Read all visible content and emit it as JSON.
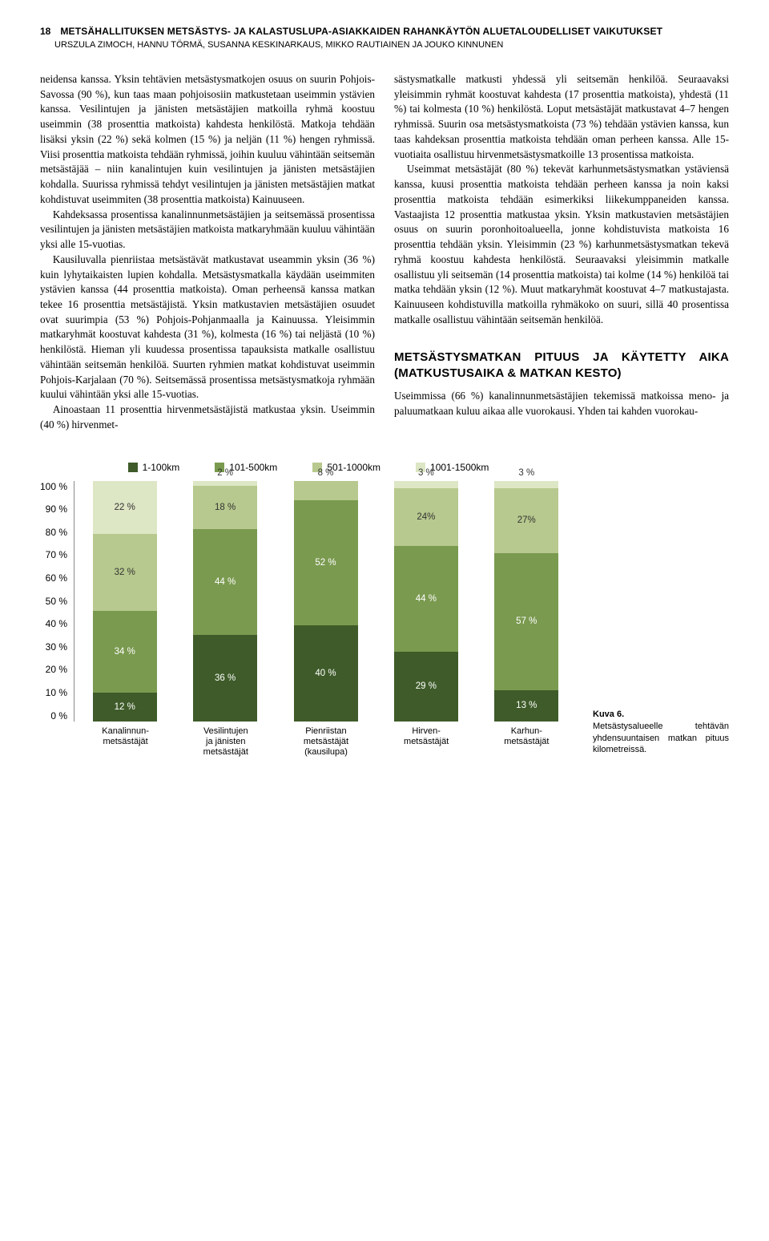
{
  "header": {
    "page_number": "18",
    "title": "METSÄHALLITUKSEN METSÄSTYS- JA KALASTUSLUPA-ASIAKKAIDEN RAHANKÄYTÖN ALUETALOUDELLISET VAIKUTUKSET",
    "authors": "URSZULA ZIMOCH, HANNU TÖRMÄ, SUSANNA KESKINARKAUS, MIKKO RAUTIAINEN JA JOUKO KINNUNEN"
  },
  "left_col": {
    "p1": "neidensa kanssa. Yksin tehtävien metsästysmatkojen osuus on suurin Pohjois-Savossa (90 %), kun taas maan pohjoisosiin matkustetaan useimmin ystävien kanssa. Vesilintujen ja jänisten metsästäjien matkoilla ryhmä koostuu useimmin (38 prosenttia matkoista) kahdesta henkilöstä. Matkoja tehdään lisäksi yksin (22 %) sekä kolmen (15 %) ja neljän (11 %) hengen ryhmissä. Viisi prosenttia matkoista tehdään ryhmissä, joihin kuuluu vähintään seitsemän metsästäjää – niin kanalintujen kuin vesilintujen ja jänisten metsästäjien kohdalla. Suurissa ryhmissä tehdyt vesilintujen ja jänisten metsästäjien matkat kohdistuvat useimmiten (38 prosenttia matkoista) Kainuuseen.",
    "p2": "Kahdeksassa prosentissa kanalinnunmetsästäjien ja seitsemässä prosentissa vesilintujen ja jänisten metsästäjien matkoista matkaryhmään kuuluu vähintään yksi alle 15-vuotias.",
    "p3": "Kausiluvalla pienriistaa metsästävät matkustavat useammin yksin (36 %) kuin lyhytaikaisten lupien kohdalla. Metsästysmatkalla käydään useimmiten ystävien kanssa (44 prosenttia matkoista). Oman perheensä kanssa matkan tekee 16 prosenttia metsästäjistä. Yksin matkustavien metsästäjien osuudet ovat suurimpia (53 %) Pohjois-Pohjanmaalla ja Kainuussa. Yleisimmin matkaryhmät koostuvat kahdesta (31 %), kolmesta (16 %) tai neljästä (10 %) henkilöstä. Hieman yli kuudessa prosentissa tapauksista matkalle osallistuu vähintään seitsemän henkilöä. Suurten ryhmien matkat kohdistuvat useimmin Pohjois-Karjalaan (70 %). Seitsemässä prosentissa metsästysmatkoja ryhmään kuului vähintään yksi alle 15-vuotias.",
    "p4": "Ainoastaan 11 prosenttia hirvenmetsästäjistä matkustaa yksin. Useimmin (40 %) hirvenmet-"
  },
  "right_col": {
    "p1": "sästysmatkalle matkusti yhdessä yli seitsemän henkilöä. Seuraavaksi yleisimmin ryhmät koostuvat kahdesta (17 prosenttia matkoista), yhdestä (11 %) tai kolmesta (10 %) henkilöstä. Loput metsästäjät matkustavat 4–7 hengen ryhmissä. Suurin osa metsästysmatkoista (73 %) tehdään ystävien kanssa, kun taas kahdeksan prosenttia matkoista tehdään oman perheen kanssa. Alle 15-vuotiaita osallistuu hirvenmetsästysmatkoille 13 prosentissa matkoista.",
    "p2": "Useimmat metsästäjät (80 %) tekevät karhunmetsästysmatkan ystäviensä kanssa, kuusi prosenttia matkoista tehdään perheen kanssa ja noin kaksi prosenttia matkoista tehdään esimerkiksi liikekumppaneiden kanssa. Vastaajista 12 prosenttia matkustaa yksin. Yksin matkustavien metsästäjien osuus on suurin poronhoitoalueella, jonne kohdistuvista matkoista 16 prosenttia tehdään yksin. Yleisimmin (23 %) karhunmetsästysmatkan tekevä ryhmä koostuu kahdesta henkilöstä. Seuraavaksi yleisimmin matkalle osallistuu yli seitsemän (14 prosenttia matkoista) tai kolme (14 %) henkilöä tai matka tehdään yksin (12 %). Muut matkaryhmät koostuvat 4–7 matkustajasta. Kainuuseen kohdistuvilla matkoilla ryhmäkoko on suuri, sillä 40 prosentissa matkalle osallistuu vähintään seitsemän henkilöä.",
    "heading": "METSÄSTYSMATKAN PITUUS JA KÄYTETTY AIKA (MATKUSTUSAIKA & MATKAN KESTO)",
    "p3": "Useimmissa (66 %) kanalinnunmetsästäjien tekemissä matkoissa meno- ja paluumatkaan kuluu aikaa alle vuorokausi. Yhden tai kahden vuorokau-"
  },
  "chart": {
    "type": "stacked-bar",
    "legend": [
      {
        "label": "1-100km",
        "color": "#3e5b29"
      },
      {
        "label": "101-500km",
        "color": "#7a9a4f"
      },
      {
        "label": "501-1000km",
        "color": "#b7c98e"
      },
      {
        "label": "1001-1500km",
        "color": "#dde6c5"
      }
    ],
    "y_ticks": [
      "100 %",
      "90 %",
      "80 %",
      "70 %",
      "60 %",
      "50 %",
      "40 %",
      "30 %",
      "20 %",
      "10 %",
      "0 %"
    ],
    "bars": [
      {
        "x_label": "Kanalinnun-\nmetsästäjät",
        "segments": [
          {
            "value": 12,
            "label": "12 %",
            "color": "#3e5b29",
            "text_dark": false
          },
          {
            "value": 34,
            "label": "34 %",
            "color": "#7a9a4f",
            "text_dark": false
          },
          {
            "value": 32,
            "label": "32 %",
            "color": "#b7c98e",
            "text_dark": true
          },
          {
            "value": 22,
            "label": "22 %",
            "color": "#dde6c5",
            "text_dark": true
          }
        ]
      },
      {
        "x_label": "Vesilintujen\nja jänisten\nmetsästäjät",
        "segments": [
          {
            "value": 36,
            "label": "36 %",
            "color": "#3e5b29",
            "text_dark": false
          },
          {
            "value": 44,
            "label": "44 %",
            "color": "#7a9a4f",
            "text_dark": false
          },
          {
            "value": 18,
            "label": "18 %",
            "color": "#b7c98e",
            "text_dark": true
          },
          {
            "value": 2,
            "label": "2 %",
            "color": "#dde6c5",
            "text_dark": true,
            "label_above": true
          }
        ]
      },
      {
        "x_label": "Pienriistan\nmetsästäjät\n(kausilupa)",
        "segments": [
          {
            "value": 40,
            "label": "40 %",
            "color": "#3e5b29",
            "text_dark": false
          },
          {
            "value": 52,
            "label": "52 %",
            "color": "#7a9a4f",
            "text_dark": false
          },
          {
            "value": 8,
            "label": "8 %",
            "color": "#b7c98e",
            "text_dark": true,
            "label_above": true
          }
        ]
      },
      {
        "x_label": "Hirven-\nmetsästäjät",
        "segments": [
          {
            "value": 29,
            "label": "29 %",
            "color": "#3e5b29",
            "text_dark": false
          },
          {
            "value": 44,
            "label": "44 %",
            "color": "#7a9a4f",
            "text_dark": false
          },
          {
            "value": 24,
            "label": "24%",
            "color": "#b7c98e",
            "text_dark": true
          },
          {
            "value": 3,
            "label": "3 %",
            "color": "#dde6c5",
            "text_dark": true,
            "label_above": true
          }
        ]
      },
      {
        "x_label": "Karhun-\nmetsästäjät",
        "segments": [
          {
            "value": 13,
            "label": "13 %",
            "color": "#3e5b29",
            "text_dark": false
          },
          {
            "value": 57,
            "label": "57 %",
            "color": "#7a9a4f",
            "text_dark": false
          },
          {
            "value": 27,
            "label": "27%",
            "color": "#b7c98e",
            "text_dark": true
          },
          {
            "value": 3,
            "label": "3 %",
            "color": "#dde6c5",
            "text_dark": true,
            "label_above": true
          }
        ]
      }
    ]
  },
  "caption": {
    "title": "Kuva 6.",
    "text": "Metsästysalueelle tehtävän yhdensuuntaisen matkan pituus kilometreissä."
  }
}
